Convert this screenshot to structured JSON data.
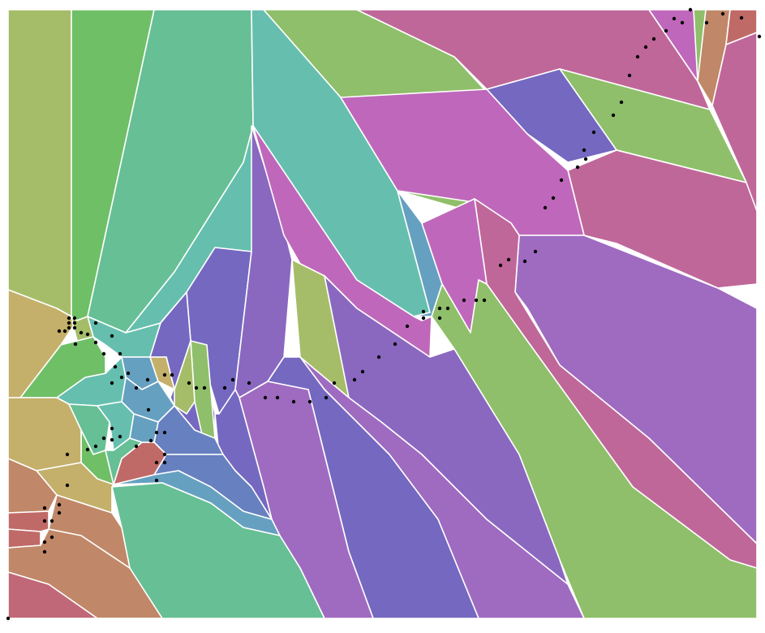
{
  "diagram": {
    "type": "voronoi",
    "palette": {
      "green": "#6fbf67",
      "lightgreen": "#8fbf6a",
      "olive": "#a5bd68",
      "tan": "#c4b06a",
      "teal": "#66bfae",
      "seagreen": "#67bf95",
      "steel": "#66a0c0",
      "blue": "#6680c0",
      "indigo": "#7568c0",
      "purple": "#8a68c0",
      "violet": "#9f6bc1",
      "magenta": "#bf68bb",
      "pink": "#c0679a",
      "rose": "#c06878",
      "salmon": "#c06a68",
      "orange": "#c08868"
    }
  }
}
